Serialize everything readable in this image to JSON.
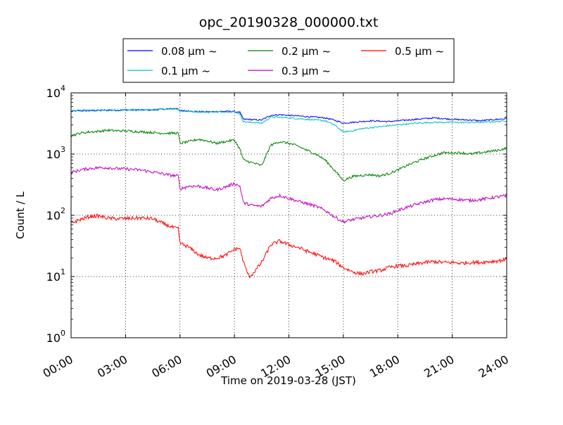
{
  "chart_data": {
    "type": "line",
    "title": "opc_20190328_000000.txt",
    "xlabel": "Time on 2019-03-28 (JST)",
    "ylabel": "Count / L",
    "yscale": "log",
    "ylim": [
      1,
      10000
    ],
    "xlim": [
      "00:00",
      "24:00"
    ],
    "grid": true,
    "legend": {
      "placement": "top-center, above plot",
      "columns": 3
    },
    "x_ticks": [
      "00:00",
      "03:00",
      "06:00",
      "09:00",
      "12:00",
      "15:00",
      "18:00",
      "21:00",
      "24:00"
    ],
    "y_ticks": [
      {
        "value": 1,
        "base": "10",
        "exp": "0"
      },
      {
        "value": 10,
        "base": "10",
        "exp": "1"
      },
      {
        "value": 100,
        "base": "10",
        "exp": "2"
      },
      {
        "value": 1000,
        "base": "10",
        "exp": "3"
      },
      {
        "value": 10000,
        "base": "10",
        "exp": "4"
      }
    ],
    "x_hours": [
      0,
      0.5,
      1,
      1.5,
      2,
      2.5,
      3,
      3.5,
      4,
      4.5,
      5,
      5.5,
      5.9,
      6,
      6.5,
      7,
      7.5,
      8,
      8.5,
      9,
      9.3,
      9.5,
      9.8,
      10,
      10.5,
      11,
      11.5,
      12,
      12.5,
      13,
      13.5,
      14,
      14.5,
      15,
      15.5,
      16,
      16.5,
      17,
      17.5,
      18,
      18.5,
      19,
      19.5,
      20,
      20.5,
      21,
      21.5,
      22,
      22.5,
      23,
      23.5,
      24
    ],
    "series": [
      {
        "name": "0.08 μm ~",
        "color": "#0000ff",
        "values": [
          5000,
          5100,
          5100,
          5150,
          5200,
          5200,
          5250,
          5250,
          5250,
          5250,
          5400,
          5500,
          5600,
          5100,
          5050,
          4950,
          4900,
          4950,
          5000,
          4950,
          4800,
          3700,
          3700,
          3650,
          3600,
          4300,
          4400,
          4300,
          4200,
          4100,
          4000,
          3900,
          3600,
          3200,
          3300,
          3400,
          3500,
          3450,
          3400,
          3500,
          3600,
          3700,
          3800,
          3900,
          3800,
          3700,
          3650,
          3600,
          3500,
          3600,
          3700,
          3800
        ]
      },
      {
        "name": "0.1 μm ~",
        "color": "#00bfbf",
        "values": [
          5100,
          5150,
          5200,
          5200,
          5250,
          5250,
          5300,
          5300,
          5300,
          5300,
          5400,
          5500,
          5500,
          5000,
          5000,
          4900,
          4850,
          4900,
          4900,
          4950,
          4500,
          3400,
          3300,
          3300,
          3200,
          4000,
          4000,
          3900,
          3800,
          3700,
          3600,
          3500,
          3000,
          2300,
          2400,
          2600,
          2700,
          2800,
          2900,
          3000,
          3100,
          3200,
          3250,
          3300,
          3300,
          3300,
          3300,
          3300,
          3300,
          3350,
          3400,
          3500
        ]
      },
      {
        "name": "0.2 μm ~",
        "color": "#008000",
        "values": [
          2000,
          2200,
          2300,
          2350,
          2450,
          2400,
          2400,
          2350,
          2300,
          2250,
          2200,
          2200,
          2200,
          1500,
          1600,
          1750,
          1650,
          1500,
          1600,
          1700,
          1200,
          800,
          750,
          720,
          650,
          1400,
          1600,
          1500,
          1350,
          1150,
          1000,
          800,
          550,
          370,
          430,
          450,
          460,
          440,
          480,
          550,
          650,
          750,
          850,
          950,
          1050,
          1050,
          1050,
          1000,
          1050,
          1100,
          1150,
          1250
        ]
      },
      {
        "name": "0.3 μm ~",
        "color": "#bf00bf",
        "values": [
          500,
          550,
          580,
          600,
          600,
          580,
          570,
          560,
          540,
          510,
          480,
          450,
          440,
          270,
          300,
          300,
          280,
          260,
          290,
          330,
          300,
          160,
          150,
          145,
          140,
          190,
          210,
          190,
          170,
          155,
          140,
          120,
          95,
          78,
          85,
          90,
          95,
          100,
          105,
          120,
          135,
          150,
          165,
          180,
          185,
          185,
          180,
          175,
          180,
          190,
          200,
          210
        ]
      },
      {
        "name": "0.5 μm ~",
        "color": "#ff0000",
        "values": [
          75,
          85,
          95,
          98,
          90,
          88,
          88,
          90,
          90,
          88,
          75,
          65,
          60,
          35,
          30,
          23,
          20,
          20,
          22,
          28,
          29,
          17,
          10,
          11,
          17,
          33,
          38,
          33,
          30,
          26,
          23,
          20,
          18,
          14,
          12,
          11,
          12,
          12.5,
          14,
          15,
          15,
          16,
          17,
          17.5,
          17,
          17,
          16.5,
          17,
          17,
          17.5,
          18,
          19
        ]
      }
    ]
  }
}
